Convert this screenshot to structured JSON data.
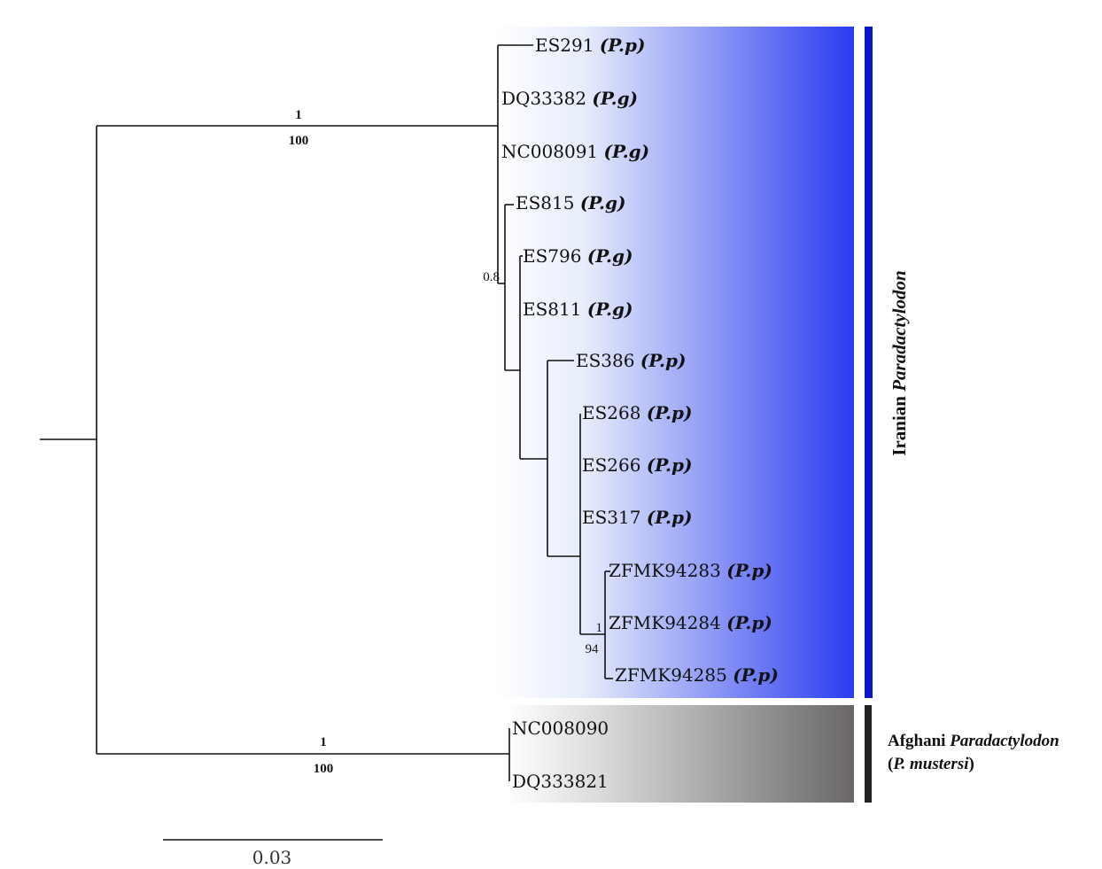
{
  "taxa": [
    {
      "id": "ES291",
      "species": "(P.p)"
    },
    {
      "id": "DQ33382",
      "species": "(P.g)"
    },
    {
      "id": "NC008091",
      "species": "(P.g)"
    },
    {
      "id": "ES815",
      "species": "(P.g)"
    },
    {
      "id": "ES796",
      "species": "(P.g)"
    },
    {
      "id": "ES811",
      "species": "(P.g)"
    },
    {
      "id": "ES386",
      "species": "(P.p)"
    },
    {
      "id": "ES268",
      "species": "(P.p)"
    },
    {
      "id": "ES266",
      "species": "(P.p)"
    },
    {
      "id": "ES317",
      "species": "(P.p)"
    },
    {
      "id": "ZFMK94283",
      "species": "(P.p)"
    },
    {
      "id": "ZFMK94284",
      "species": "(P.p)"
    },
    {
      "id": "ZFMK94285",
      "species": "(P.p)"
    },
    {
      "id": "NC008090",
      "species": ""
    },
    {
      "id": "DQ333821",
      "species": ""
    }
  ],
  "support": {
    "iranian_clade_top": "1",
    "iranian_clade_bottom": "100",
    "inner_node": "0.8",
    "zfmk_clade_top": "1",
    "zfmk_clade_bottom": "94",
    "afghani_clade_top": "1",
    "afghani_clade_bottom": "100"
  },
  "scale_bar": {
    "label": "0.03"
  },
  "clades": {
    "iranian": {
      "prefix": "Iranian ",
      "genus": "Paradactylodon",
      "color": "#0a14c8",
      "gradient_end": "#2a3cf0"
    },
    "afghani": {
      "line1_prefix": "Afghani ",
      "line1_genus": "Paradactylodon",
      "line2_open": "(",
      "line2_species": "P. mustersi",
      "line2_close": ")",
      "color": "#222222",
      "gradient_end": "#6a6767"
    }
  }
}
